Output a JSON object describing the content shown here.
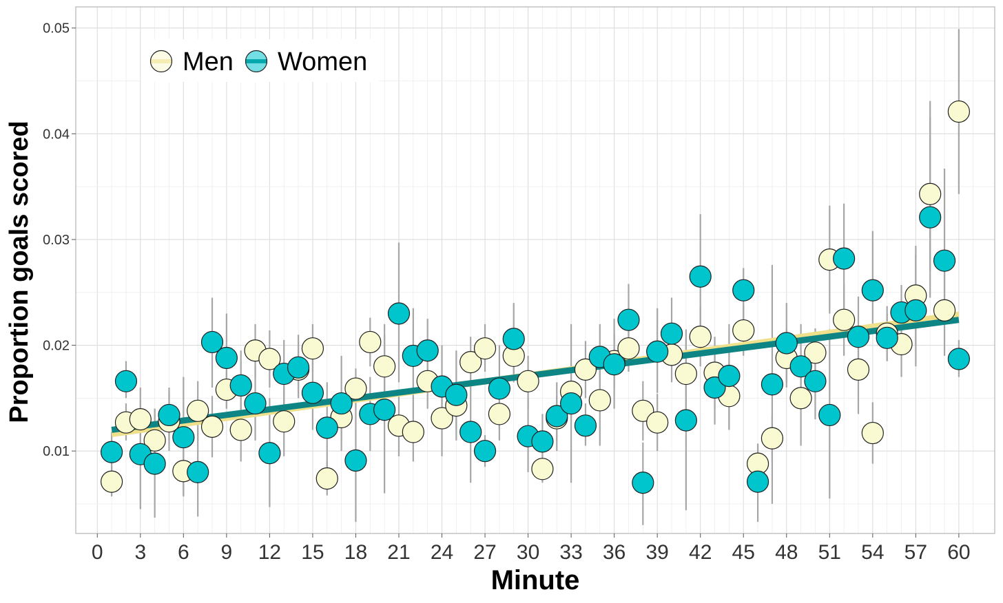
{
  "chart_data": {
    "type": "scatter",
    "xlabel": "Minute",
    "ylabel": "Proportion goals scored",
    "xlim": [
      -1.5,
      62.5
    ],
    "ylim": [
      0.0022,
      0.052
    ],
    "x_ticks": [
      0,
      3,
      6,
      9,
      12,
      15,
      18,
      21,
      24,
      27,
      30,
      33,
      36,
      39,
      42,
      45,
      48,
      51,
      54,
      57,
      60
    ],
    "y_ticks": [
      0.01,
      0.02,
      0.03,
      0.04,
      0.05
    ],
    "y_tick_labels": [
      "0.01",
      "0.02",
      "0.03",
      "0.04",
      "0.05"
    ],
    "grid": true,
    "legend_position": "top-left",
    "series": [
      {
        "name": "Men",
        "fill": "#fafad2",
        "line_color": "#efe08c",
        "trend": [
          [
            1,
            0.0116
          ],
          [
            60,
            0.0229
          ]
        ],
        "x": [
          1,
          2,
          3,
          4,
          5,
          6,
          7,
          8,
          9,
          10,
          11,
          12,
          13,
          14,
          15,
          16,
          17,
          18,
          19,
          20,
          21,
          22,
          23,
          24,
          25,
          26,
          27,
          28,
          29,
          30,
          31,
          32,
          33,
          34,
          35,
          36,
          37,
          38,
          39,
          40,
          41,
          42,
          43,
          44,
          45,
          46,
          47,
          48,
          49,
          50,
          51,
          52,
          53,
          54,
          55,
          56,
          57,
          58,
          59,
          60
        ],
        "values": [
          0.0071,
          0.0127,
          0.013,
          0.011,
          0.0128,
          0.0081,
          0.0138,
          0.0123,
          0.0158,
          0.012,
          0.0195,
          0.0187,
          0.0128,
          0.0177,
          0.0197,
          0.0074,
          0.0132,
          0.0159,
          0.0203,
          0.018,
          0.0124,
          0.0118,
          0.0166,
          0.0131,
          0.0143,
          0.0184,
          0.0197,
          0.0135,
          0.019,
          0.0166,
          0.0083,
          0.0131,
          0.0156,
          0.0177,
          0.0148,
          0.0185,
          0.0197,
          0.0138,
          0.0127,
          0.0191,
          0.0173,
          0.0208,
          0.0174,
          0.0152,
          0.0214,
          0.0088,
          0.0112,
          0.0188,
          0.015,
          0.0193,
          0.0281,
          0.0224,
          0.0177,
          0.0117,
          0.0211,
          0.0201,
          0.0247,
          0.0343,
          0.0233,
          0.0421
        ],
        "ci_low": [
          0.0057,
          0.011,
          0.01,
          0.008,
          0.01,
          0.0058,
          0.011,
          0.0094,
          0.014,
          0.009,
          0.017,
          0.016,
          0.0095,
          0.015,
          0.0175,
          0.0058,
          0.011,
          0.014,
          0.018,
          0.015,
          0.0095,
          0.009,
          0.014,
          0.0095,
          0.012,
          0.016,
          0.0175,
          0.011,
          0.017,
          0.014,
          0.007,
          0.011,
          0.013,
          0.015,
          0.0105,
          0.016,
          0.0175,
          0.011,
          0.01,
          0.0165,
          0.014,
          0.018,
          0.014,
          0.012,
          0.019,
          0.007,
          0.009,
          0.016,
          0.0105,
          0.017,
          0.023,
          0.019,
          0.0135,
          0.0088,
          0.0185,
          0.017,
          0.02,
          0.027,
          0.019,
          0.0343
        ],
        "ci_high": [
          0.0085,
          0.0145,
          0.016,
          0.014,
          0.0155,
          0.0105,
          0.0166,
          0.0152,
          0.0176,
          0.015,
          0.022,
          0.0214,
          0.016,
          0.0204,
          0.022,
          0.009,
          0.0154,
          0.0178,
          0.0226,
          0.021,
          0.0153,
          0.0146,
          0.0192,
          0.0167,
          0.0166,
          0.0208,
          0.022,
          0.016,
          0.021,
          0.019,
          0.0096,
          0.0152,
          0.0182,
          0.0204,
          0.019,
          0.021,
          0.022,
          0.0166,
          0.0154,
          0.0217,
          0.0206,
          0.0236,
          0.0208,
          0.0184,
          0.0238,
          0.0106,
          0.0134,
          0.0216,
          0.0195,
          0.0216,
          0.0332,
          0.0258,
          0.0219,
          0.0146,
          0.0237,
          0.0232,
          0.0294,
          0.0416,
          0.0276,
          0.0499
        ]
      },
      {
        "name": "Women",
        "fill": "#00c5cd",
        "line_color": "#0e8585",
        "trend": [
          [
            1,
            0.012
          ],
          [
            60,
            0.0224
          ]
        ],
        "x": [
          1,
          2,
          3,
          4,
          5,
          6,
          7,
          8,
          9,
          10,
          11,
          12,
          13,
          14,
          15,
          16,
          17,
          18,
          19,
          20,
          21,
          22,
          23,
          24,
          25,
          26,
          27,
          28,
          29,
          30,
          31,
          32,
          33,
          34,
          35,
          36,
          37,
          38,
          39,
          40,
          41,
          42,
          43,
          44,
          45,
          46,
          47,
          48,
          49,
          50,
          51,
          52,
          53,
          54,
          55,
          56,
          57,
          58,
          59,
          60
        ],
        "values": [
          0.0099,
          0.0166,
          0.0097,
          0.0088,
          0.0134,
          0.0113,
          0.008,
          0.0203,
          0.0188,
          0.0162,
          0.0145,
          0.0098,
          0.0173,
          0.0179,
          0.0155,
          0.0122,
          0.0145,
          0.0091,
          0.0135,
          0.0139,
          0.023,
          0.019,
          0.0195,
          0.0161,
          0.0153,
          0.0118,
          0.01,
          0.0159,
          0.0206,
          0.0114,
          0.0109,
          0.0133,
          0.0145,
          0.0124,
          0.0189,
          0.0182,
          0.0224,
          0.007,
          0.0194,
          0.0211,
          0.0129,
          0.0265,
          0.016,
          0.0171,
          0.0252,
          0.0071,
          0.0163,
          0.0202,
          0.018,
          0.0166,
          0.0134,
          0.0282,
          0.0208,
          0.0252,
          0.0207,
          0.0231,
          0.0233,
          0.0321,
          0.028,
          0.0187
        ],
        "ci_low": [
          0.008,
          0.015,
          0.0045,
          0.0037,
          0.011,
          0.0057,
          0.0038,
          0.016,
          0.014,
          0.013,
          0.011,
          0.0047,
          0.014,
          0.015,
          0.012,
          0.008,
          0.01,
          0.0033,
          0.01,
          0.006,
          0.0165,
          0.0145,
          0.0165,
          0.012,
          0.011,
          0.007,
          0.0085,
          0.012,
          0.0165,
          0.008,
          0.0085,
          0.01,
          0.007,
          0.0105,
          0.016,
          0.014,
          0.0185,
          0.003,
          0.0155,
          0.018,
          0.0044,
          0.0205,
          0.0125,
          0.012,
          0.0215,
          0.0033,
          0.005,
          0.0165,
          0.014,
          0.013,
          0.0055,
          0.0235,
          0.017,
          0.0215,
          0.0185,
          0.0205,
          0.018,
          0.0245,
          0.0225,
          0.017
        ],
        "ci_high": [
          0.0118,
          0.0185,
          0.0148,
          0.014,
          0.016,
          0.017,
          0.0122,
          0.0245,
          0.023,
          0.0195,
          0.018,
          0.015,
          0.0205,
          0.021,
          0.019,
          0.0165,
          0.019,
          0.015,
          0.017,
          0.022,
          0.0297,
          0.0235,
          0.0225,
          0.02,
          0.0195,
          0.0165,
          0.0115,
          0.02,
          0.024,
          0.015,
          0.0135,
          0.0165,
          0.022,
          0.0145,
          0.022,
          0.0225,
          0.0258,
          0.0108,
          0.0235,
          0.0245,
          0.0215,
          0.0324,
          0.0195,
          0.022,
          0.0273,
          0.0107,
          0.0276,
          0.024,
          0.022,
          0.02,
          0.0215,
          0.0334,
          0.0246,
          0.0308,
          0.023,
          0.0257,
          0.0286,
          0.0431,
          0.0367,
          0.0205
        ]
      }
    ]
  }
}
